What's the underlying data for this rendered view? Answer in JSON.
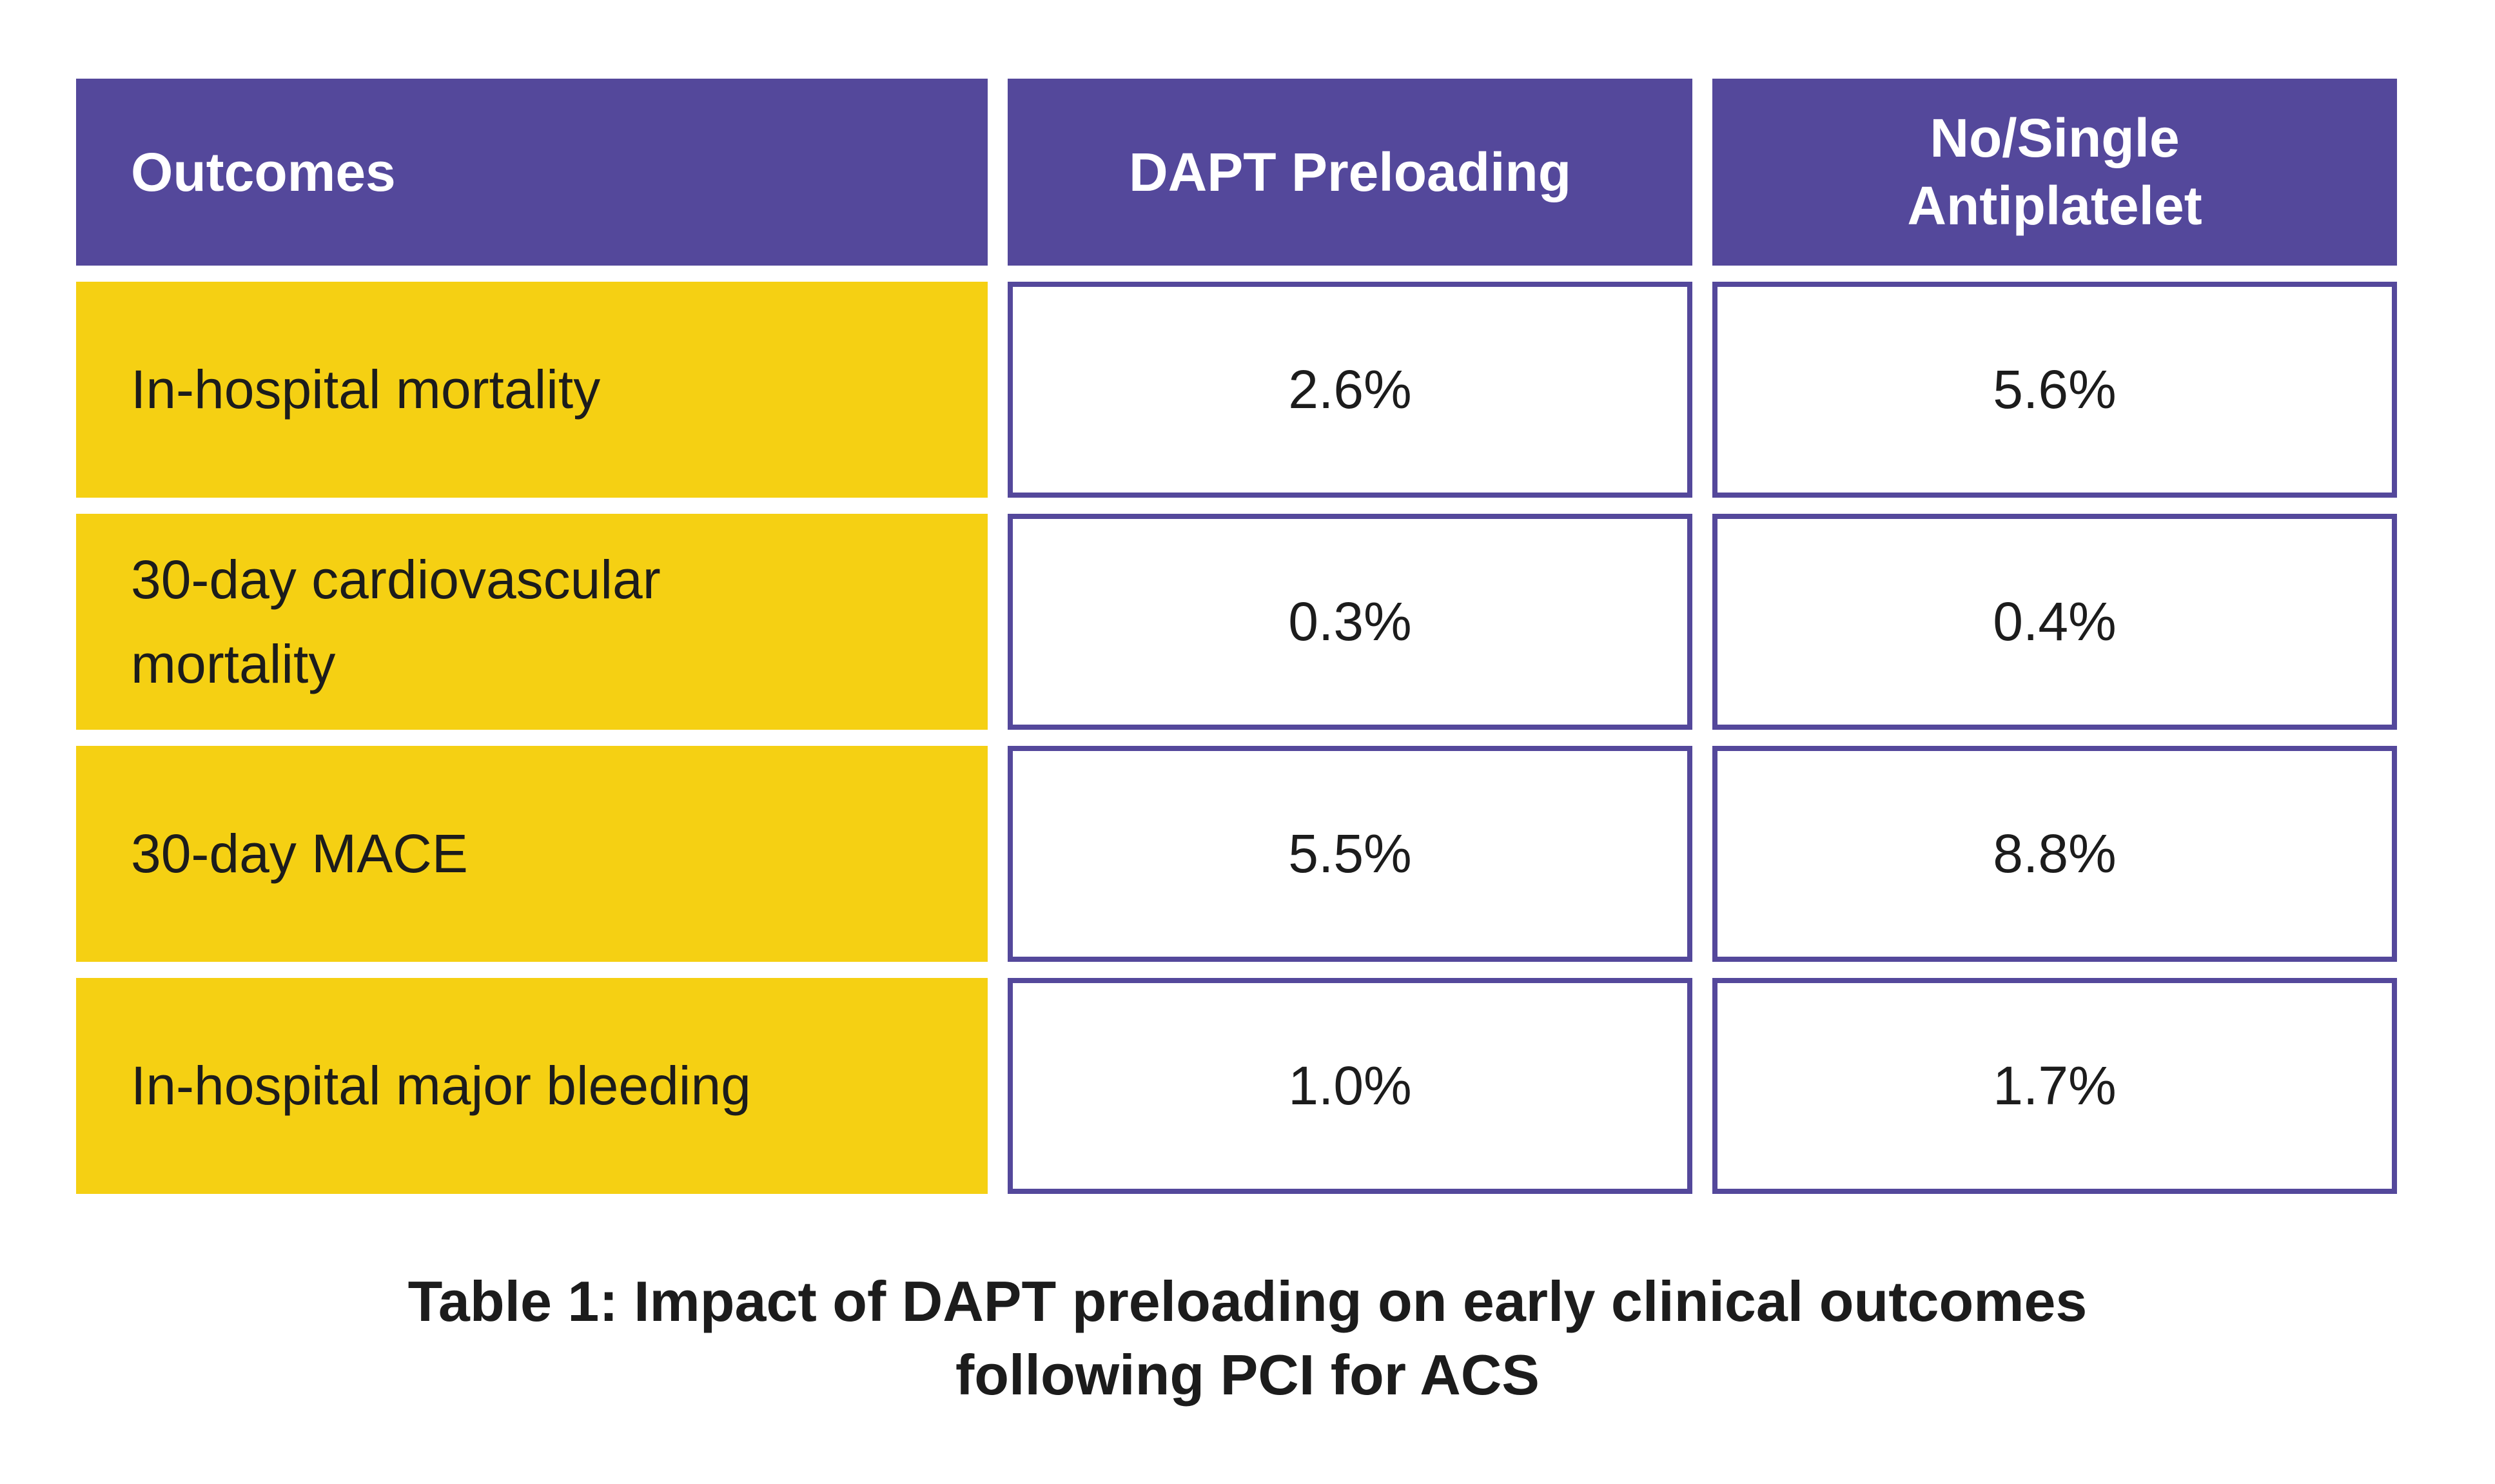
{
  "colors": {
    "purple": "#54489B",
    "yellow": "#F5D013",
    "cell-bg": "#FFFFFF",
    "page-bg": "#FFFFFF",
    "text-dark": "#1C1C1C",
    "text-light": "#FFFFFF"
  },
  "table": {
    "headers": {
      "outcomes": "Outcomes",
      "dapt": "DAPT Preloading",
      "no_single": "No/Single\nAntiplatelet"
    },
    "rows": [
      {
        "outcome": "In-hospital mortality",
        "dapt": "2.6%",
        "no_single": "5.6%"
      },
      {
        "outcome": "30-day cardiovascular\nmortality",
        "dapt": "0.3%",
        "no_single": "0.4%"
      },
      {
        "outcome": "30-day MACE",
        "dapt": "5.5%",
        "no_single": "8.8%"
      },
      {
        "outcome": "In-hospital major bleeding",
        "dapt": "1.0%",
        "no_single": "1.7%"
      }
    ],
    "caption": "Table 1: Impact of DAPT preloading on early clinical outcomes\nfollowing PCI for ACS"
  },
  "chart_data": {
    "type": "table",
    "title": "Table 1: Impact of DAPT preloading on early clinical outcomes following PCI for ACS",
    "columns": [
      "Outcomes",
      "DAPT Preloading",
      "No/Single Antiplatelet"
    ],
    "rows": [
      [
        "In-hospital mortality",
        "2.6%",
        "5.6%"
      ],
      [
        "30-day cardiovascular mortality",
        "0.3%",
        "0.4%"
      ],
      [
        "30-day MACE",
        "5.5%",
        "8.8%"
      ],
      [
        "In-hospital major bleeding",
        "1.0%",
        "1.7%"
      ]
    ],
    "series": [
      {
        "name": "DAPT Preloading",
        "values": [
          2.6,
          0.3,
          5.5,
          1.0
        ],
        "unit": "%"
      },
      {
        "name": "No/Single Antiplatelet",
        "values": [
          5.6,
          0.4,
          8.8,
          1.7
        ],
        "unit": "%"
      }
    ],
    "categories": [
      "In-hospital mortality",
      "30-day cardiovascular mortality",
      "30-day MACE",
      "In-hospital major bleeding"
    ]
  }
}
